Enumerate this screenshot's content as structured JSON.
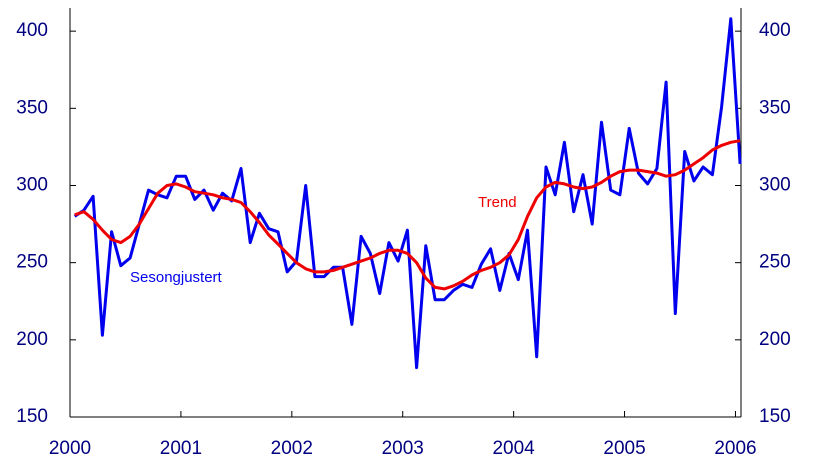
{
  "chart_data": {
    "type": "line",
    "x": [
      2000.042,
      2000.125,
      2000.208,
      2000.292,
      2000.375,
      2000.458,
      2000.542,
      2000.625,
      2000.708,
      2000.792,
      2000.875,
      2000.958,
      2001.042,
      2001.125,
      2001.208,
      2001.292,
      2001.375,
      2001.458,
      2001.542,
      2001.625,
      2001.708,
      2001.792,
      2001.875,
      2001.958,
      2002.042,
      2002.125,
      2002.208,
      2002.292,
      2002.375,
      2002.458,
      2002.542,
      2002.625,
      2002.708,
      2002.792,
      2002.875,
      2002.958,
      2003.042,
      2003.125,
      2003.208,
      2003.292,
      2003.375,
      2003.458,
      2003.542,
      2003.625,
      2003.708,
      2003.792,
      2003.875,
      2003.958,
      2004.042,
      2004.125,
      2004.208,
      2004.292,
      2004.375,
      2004.458,
      2004.542,
      2004.625,
      2004.708,
      2004.792,
      2004.875,
      2004.958,
      2005.042,
      2005.125,
      2005.208,
      2005.292,
      2005.375,
      2005.458,
      2005.542,
      2005.625,
      2005.708,
      2005.792,
      2005.875,
      2005.958,
      2006.042
    ],
    "series": [
      {
        "name": "Sesongjustert",
        "color": "#0000ee",
        "values": [
          280,
          284,
          293,
          203,
          270,
          248,
          253,
          275,
          297,
          294,
          292,
          306,
          306,
          291,
          297,
          284,
          295,
          290,
          311,
          263,
          282,
          272,
          270,
          244,
          251,
          300,
          241,
          241,
          247,
          247,
          210,
          267,
          256,
          230,
          263,
          251,
          271,
          182,
          261,
          226,
          226,
          232,
          236,
          234,
          249,
          259,
          232,
          256,
          239,
          271,
          189,
          312,
          294,
          328,
          283,
          307,
          275,
          341,
          297,
          294,
          337,
          308,
          301,
          311,
          367,
          217,
          322,
          303,
          312,
          307,
          351,
          408,
          314
        ]
      },
      {
        "name": "Trend",
        "color": "#ee0000",
        "values": [
          281,
          283,
          278,
          271,
          265,
          263,
          267,
          275,
          285,
          295,
          300,
          301,
          299,
          296,
          295,
          294,
          292,
          291,
          289,
          283,
          276,
          268,
          262,
          256,
          250,
          246,
          244,
          244,
          245,
          247,
          249,
          251,
          253,
          256,
          258,
          258,
          256,
          250,
          240,
          234,
          233,
          235,
          238,
          242,
          245,
          247,
          250,
          255,
          265,
          280,
          292,
          299,
          302,
          301,
          299,
          298,
          299,
          302,
          306,
          309,
          310,
          310,
          309,
          308,
          306,
          307,
          310,
          314,
          318,
          323,
          326,
          328,
          329
        ]
      }
    ],
    "xlim": [
      2000,
      2006.05
    ],
    "xticks": [
      2000,
      2001,
      2002,
      2003,
      2004,
      2005,
      2006
    ],
    "ylim": [
      150,
      415
    ],
    "yticks": [
      150,
      200,
      250,
      300,
      350,
      400
    ],
    "y2lim": [
      150,
      415
    ],
    "y2ticks": [
      150,
      200,
      250,
      300,
      350,
      400
    ]
  }
}
